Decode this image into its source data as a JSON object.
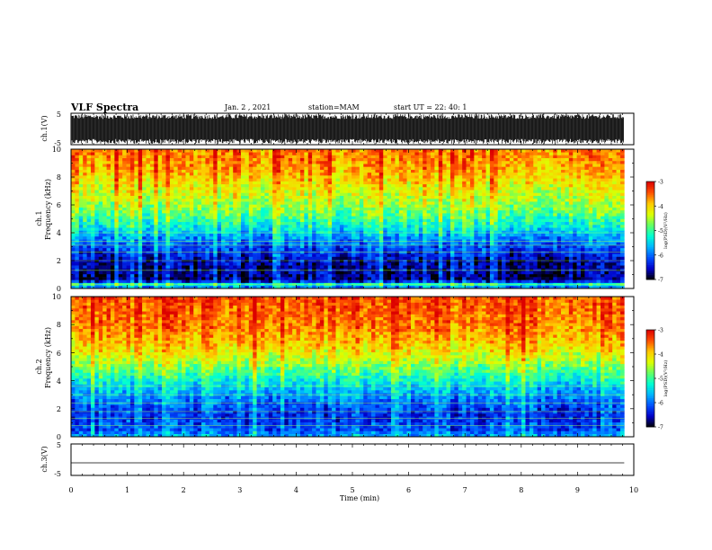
{
  "header": {
    "title": "VLF Spectra",
    "date": "Jan. 2 , 2021",
    "station": "station=MAM",
    "start": "start UT =  22: 40: 1"
  },
  "chart_data": {
    "type": "heatmap",
    "x": {
      "label": "Time (min)",
      "range": [
        0,
        10
      ],
      "ticks": [
        "0",
        "1",
        "2",
        "3",
        "4",
        "5",
        "6",
        "7",
        "8",
        "9",
        "10"
      ],
      "data_end": 9.83
    },
    "panels": [
      {
        "kind": "waveform",
        "ylabel": "ch.1(V)",
        "ylim": [
          -5,
          5
        ],
        "ticks": [
          "5",
          "-5"
        ]
      },
      {
        "kind": "spectrogram",
        "ylabel_top": "ch.1",
        "ylabel": "Frequency (kHz)",
        "ylim": [
          0,
          10
        ],
        "ticks": [
          "0",
          "2",
          "4",
          "6",
          "8",
          "10"
        ],
        "profile_log_psd": [
          {
            "f": 0.0,
            "v": -6.2
          },
          {
            "f": 0.3,
            "v": -5.2
          },
          {
            "f": 0.6,
            "v": -6.8
          },
          {
            "f": 2.0,
            "v": -6.6
          },
          {
            "f": 3.5,
            "v": -5.9
          },
          {
            "f": 4.5,
            "v": -5.3
          },
          {
            "f": 5.5,
            "v": -4.8
          },
          {
            "f": 6.5,
            "v": -4.45
          },
          {
            "f": 7.5,
            "v": -4.15
          },
          {
            "f": 8.5,
            "v": -3.85
          },
          {
            "f": 10.0,
            "v": -3.6
          }
        ],
        "lines_khz": [
          0.3,
          1.3,
          2.0,
          2.6,
          3.1,
          3.4,
          4.0
        ]
      },
      {
        "kind": "spectrogram",
        "ylabel_top": "ch.2",
        "ylabel": "Frequency (kHz)",
        "ylim": [
          0,
          10
        ],
        "ticks": [
          "0",
          "2",
          "4",
          "6",
          "8",
          "10"
        ],
        "profile_log_psd": [
          {
            "f": 0.0,
            "v": -5.7
          },
          {
            "f": 0.5,
            "v": -6.1
          },
          {
            "f": 1.5,
            "v": -6.3
          },
          {
            "f": 2.5,
            "v": -6.0
          },
          {
            "f": 3.5,
            "v": -5.55
          },
          {
            "f": 4.5,
            "v": -5.0
          },
          {
            "f": 5.5,
            "v": -4.45
          },
          {
            "f": 6.5,
            "v": -4.0
          },
          {
            "f": 8.0,
            "v": -3.6
          },
          {
            "f": 10.0,
            "v": -3.4
          }
        ],
        "lines_khz": [
          0.8,
          1.3,
          1.8,
          2.4,
          3.0,
          3.6
        ]
      },
      {
        "kind": "waveform",
        "ylabel": "ch.3(V)",
        "ylim": [
          -5,
          5
        ],
        "ticks": [
          "5",
          "-5"
        ],
        "level": -1
      }
    ],
    "colorbar": {
      "label": "log(PSD)(V²/Hz)",
      "range": [
        -7,
        -3
      ],
      "ticks": [
        "-3",
        "-4",
        "-5",
        "-6",
        "-7"
      ],
      "colormap": [
        "#000000",
        "#0000c8",
        "#0050ff",
        "#00b4ff",
        "#00ffd2",
        "#64ff64",
        "#dcff00",
        "#ffc800",
        "#ff5000",
        "#dc0000",
        "#ffffff"
      ]
    }
  }
}
